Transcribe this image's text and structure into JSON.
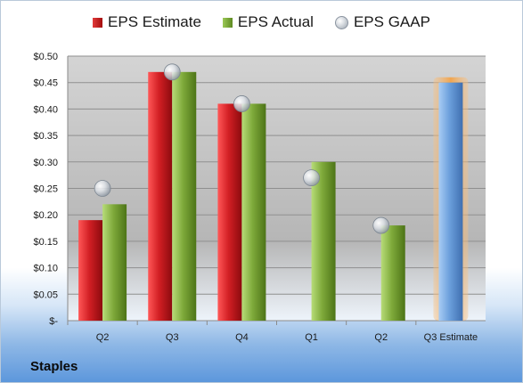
{
  "company": "Staples",
  "legend": {
    "estimate": "EPS Estimate",
    "actual": "EPS Actual",
    "gaap": "EPS GAAP"
  },
  "colors": {
    "estimate": "#c8202a",
    "actual": "#77a33a",
    "gaap": "#c5cbd2",
    "projected": "#6a9fdc",
    "highlight": "#f2a34a"
  },
  "chart_data": {
    "type": "bar",
    "categories": [
      "Q2",
      "Q3",
      "Q4",
      "Q1",
      "Q2",
      "Q3 Estimate"
    ],
    "yticks": [
      "$-",
      "$0.05",
      "$0.10",
      "$0.15",
      "$0.20",
      "$0.25",
      "$0.30",
      "$0.35",
      "$0.40",
      "$0.45",
      "$0.50"
    ],
    "ylim": [
      0,
      0.5
    ],
    "series": [
      {
        "name": "EPS Estimate",
        "values": [
          0.19,
          0.47,
          0.41,
          null,
          null,
          null
        ]
      },
      {
        "name": "EPS Actual",
        "values": [
          0.22,
          0.47,
          0.41,
          0.3,
          0.18,
          null
        ]
      },
      {
        "name": "EPS GAAP",
        "values": [
          0.25,
          0.47,
          0.41,
          0.27,
          0.18,
          null
        ]
      }
    ],
    "projected": {
      "category": "Q3 Estimate",
      "value": 0.45
    },
    "legend_position": "top"
  }
}
